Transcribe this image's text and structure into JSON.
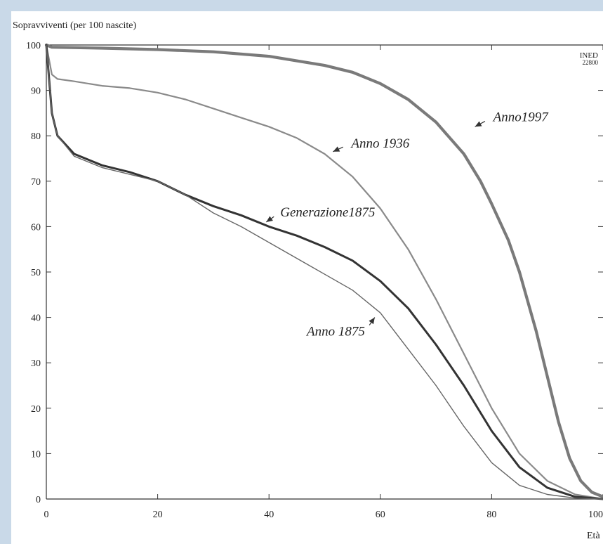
{
  "chart_data": {
    "type": "line",
    "title": "",
    "ylabel": "Sopravviventi (per 100 nascite)",
    "xlabel": "Età",
    "xlim": [
      0,
      100
    ],
    "ylim": [
      0,
      100
    ],
    "x_ticks": [
      0,
      20,
      40,
      60,
      80,
      100
    ],
    "y_ticks": [
      0,
      10,
      20,
      30,
      40,
      50,
      60,
      70,
      80,
      90,
      100
    ],
    "grid": false,
    "stamp": [
      "INED",
      "22800"
    ],
    "series": [
      {
        "name": "Anno1997",
        "color": "#7a7a7a",
        "points": [
          [
            0,
            100
          ],
          [
            1,
            99.5
          ],
          [
            10,
            99.3
          ],
          [
            20,
            99
          ],
          [
            30,
            98.5
          ],
          [
            40,
            97.5
          ],
          [
            50,
            95.5
          ],
          [
            55,
            94
          ],
          [
            60,
            91.5
          ],
          [
            65,
            88
          ],
          [
            70,
            83
          ],
          [
            75,
            76
          ],
          [
            78,
            70
          ],
          [
            80,
            65
          ],
          [
            83,
            57
          ],
          [
            85,
            50
          ],
          [
            88,
            37
          ],
          [
            90,
            27
          ],
          [
            92,
            17
          ],
          [
            94,
            9
          ],
          [
            96,
            4
          ],
          [
            98,
            1.5
          ],
          [
            100,
            0.5
          ]
        ]
      },
      {
        "name": "Anno 1936",
        "color": "#8a8a8a",
        "points": [
          [
            0,
            100
          ],
          [
            1,
            93.5
          ],
          [
            2,
            92.5
          ],
          [
            5,
            92
          ],
          [
            10,
            91
          ],
          [
            15,
            90.5
          ],
          [
            20,
            89.5
          ],
          [
            25,
            88
          ],
          [
            30,
            86
          ],
          [
            35,
            84
          ],
          [
            40,
            82
          ],
          [
            45,
            79.5
          ],
          [
            50,
            76
          ],
          [
            55,
            71
          ],
          [
            60,
            64
          ],
          [
            65,
            55
          ],
          [
            70,
            44
          ],
          [
            75,
            32
          ],
          [
            80,
            20
          ],
          [
            85,
            10
          ],
          [
            90,
            4
          ],
          [
            95,
            1
          ],
          [
            100,
            0
          ]
        ]
      },
      {
        "name": "Generazione1875",
        "color": "#333333",
        "points": [
          [
            0,
            100
          ],
          [
            1,
            85
          ],
          [
            2,
            80
          ],
          [
            5,
            76
          ],
          [
            10,
            73.5
          ],
          [
            15,
            72
          ],
          [
            20,
            70
          ],
          [
            25,
            67
          ],
          [
            30,
            64.5
          ],
          [
            35,
            62.5
          ],
          [
            40,
            60
          ],
          [
            45,
            58
          ],
          [
            50,
            55.5
          ],
          [
            55,
            52.5
          ],
          [
            60,
            48
          ],
          [
            65,
            42
          ],
          [
            70,
            34
          ],
          [
            75,
            25
          ],
          [
            80,
            15
          ],
          [
            85,
            7
          ],
          [
            90,
            2.5
          ],
          [
            95,
            0.5
          ],
          [
            100,
            0
          ]
        ]
      },
      {
        "name": "Anno 1875",
        "color": "#666666",
        "points": [
          [
            0,
            100
          ],
          [
            1,
            85
          ],
          [
            2,
            80
          ],
          [
            5,
            75.5
          ],
          [
            10,
            73
          ],
          [
            15,
            71.5
          ],
          [
            20,
            70
          ],
          [
            25,
            67
          ],
          [
            30,
            63
          ],
          [
            35,
            60
          ],
          [
            40,
            56.5
          ],
          [
            45,
            53
          ],
          [
            50,
            49.5
          ],
          [
            55,
            46
          ],
          [
            60,
            41
          ],
          [
            65,
            33
          ],
          [
            70,
            25
          ],
          [
            75,
            16
          ],
          [
            80,
            8
          ],
          [
            85,
            3
          ],
          [
            90,
            1
          ],
          [
            95,
            0.2
          ],
          [
            100,
            0
          ]
        ]
      }
    ],
    "annotations": [
      {
        "text": "Anno1997",
        "series": "Anno1997",
        "anchor": [
          77,
          82
        ]
      },
      {
        "text": "Anno 1936",
        "series": "Anno 1936",
        "anchor": [
          51.5,
          76.5
        ]
      },
      {
        "text": "Generazione1875",
        "series": "Generazione1875",
        "anchor": [
          39.5,
          61
        ]
      },
      {
        "text": "Anno 1875",
        "series": "Anno 1875",
        "anchor": [
          59,
          40
        ]
      }
    ]
  }
}
